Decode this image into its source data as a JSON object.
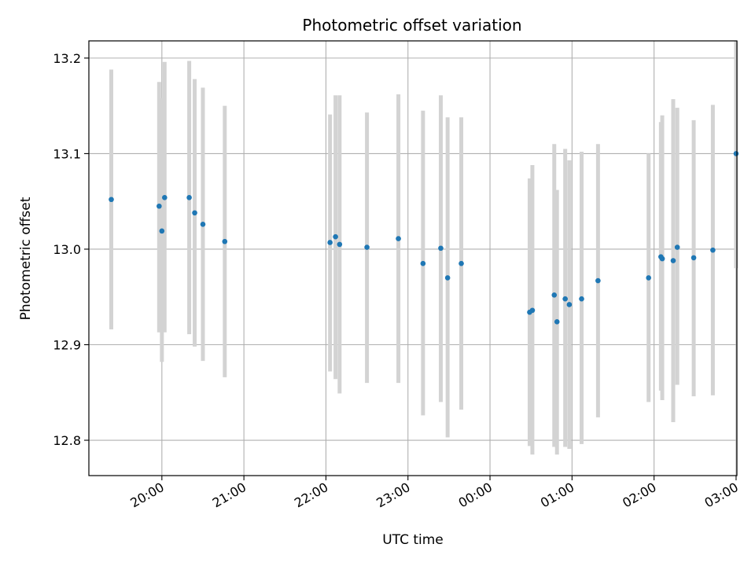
{
  "chart_data": {
    "type": "scatter",
    "title": "Photometric offset variation",
    "xlabel": "UTC time",
    "ylabel": "Photometric offset",
    "x_axis": {
      "kind": "time",
      "start": "19:00",
      "range": [
        "19:00",
        "03:00"
      ],
      "ticks": [
        "20:00",
        "21:00",
        "22:00",
        "23:00",
        "00:00",
        "01:00",
        "02:00",
        "03:00"
      ]
    },
    "y_axis": {
      "range": [
        12.763,
        13.218
      ],
      "ticks": [
        12.8,
        12.9,
        13.0,
        13.1,
        13.2
      ],
      "tick_labels": [
        "12.8",
        "12.9",
        "13.0",
        "13.1",
        "13.2"
      ]
    },
    "grid": true,
    "colors": {
      "point": "#1f77b4",
      "errorbar": "#d3d3d3",
      "grid": "#b0b0b0"
    },
    "points": [
      {
        "t": "19:23",
        "y": 13.052,
        "lo": 12.916,
        "hi": 13.188
      },
      {
        "t": "19:58",
        "y": 13.045,
        "lo": 12.913,
        "hi": 13.175
      },
      {
        "t": "20:00",
        "y": 13.019,
        "lo": 12.882,
        "hi": 13.158
      },
      {
        "t": "20:02",
        "y": 13.054,
        "lo": 12.913,
        "hi": 13.196
      },
      {
        "t": "20:20",
        "y": 13.054,
        "lo": 12.911,
        "hi": 13.197
      },
      {
        "t": "20:24",
        "y": 13.038,
        "lo": 12.898,
        "hi": 13.178
      },
      {
        "t": "20:30",
        "y": 13.026,
        "lo": 12.883,
        "hi": 13.169
      },
      {
        "t": "20:46",
        "y": 13.008,
        "lo": 12.866,
        "hi": 13.15
      },
      {
        "t": "22:03",
        "y": 13.007,
        "lo": 12.872,
        "hi": 13.141
      },
      {
        "t": "22:07",
        "y": 13.013,
        "lo": 12.864,
        "hi": 13.161
      },
      {
        "t": "22:10",
        "y": 13.005,
        "lo": 12.849,
        "hi": 13.161
      },
      {
        "t": "22:30",
        "y": 13.002,
        "lo": 12.86,
        "hi": 13.143
      },
      {
        "t": "22:53",
        "y": 13.011,
        "lo": 12.86,
        "hi": 13.162
      },
      {
        "t": "23:11",
        "y": 12.985,
        "lo": 12.826,
        "hi": 13.145
      },
      {
        "t": "23:24",
        "y": 13.001,
        "lo": 12.84,
        "hi": 13.161
      },
      {
        "t": "23:29",
        "y": 12.97,
        "lo": 12.803,
        "hi": 13.138
      },
      {
        "t": "23:39",
        "y": 12.985,
        "lo": 12.832,
        "hi": 13.138
      },
      {
        "t": "00:29",
        "y": 12.934,
        "lo": 12.794,
        "hi": 13.074
      },
      {
        "t": "00:31",
        "y": 12.936,
        "lo": 12.785,
        "hi": 13.088
      },
      {
        "t": "00:47",
        "y": 12.952,
        "lo": 12.793,
        "hi": 13.11
      },
      {
        "t": "00:49",
        "y": 12.924,
        "lo": 12.785,
        "hi": 13.062
      },
      {
        "t": "00:55",
        "y": 12.948,
        "lo": 12.793,
        "hi": 13.105
      },
      {
        "t": "00:58",
        "y": 12.942,
        "lo": 12.791,
        "hi": 13.093
      },
      {
        "t": "01:07",
        "y": 12.948,
        "lo": 12.796,
        "hi": 13.102
      },
      {
        "t": "01:19",
        "y": 12.967,
        "lo": 12.824,
        "hi": 13.11
      },
      {
        "t": "01:56",
        "y": 12.97,
        "lo": 12.84,
        "hi": 13.1
      },
      {
        "t": "02:05",
        "y": 12.992,
        "lo": 12.852,
        "hi": 13.133
      },
      {
        "t": "02:06",
        "y": 12.99,
        "lo": 12.842,
        "hi": 13.14
      },
      {
        "t": "02:14",
        "y": 12.988,
        "lo": 12.819,
        "hi": 13.157
      },
      {
        "t": "02:17",
        "y": 13.002,
        "lo": 12.858,
        "hi": 13.148
      },
      {
        "t": "02:29",
        "y": 12.991,
        "lo": 12.846,
        "hi": 13.135
      },
      {
        "t": "02:43",
        "y": 12.999,
        "lo": 12.847,
        "hi": 13.151
      },
      {
        "t": "03:00",
        "y": 13.1,
        "lo": 12.98,
        "hi": 13.22
      }
    ]
  }
}
